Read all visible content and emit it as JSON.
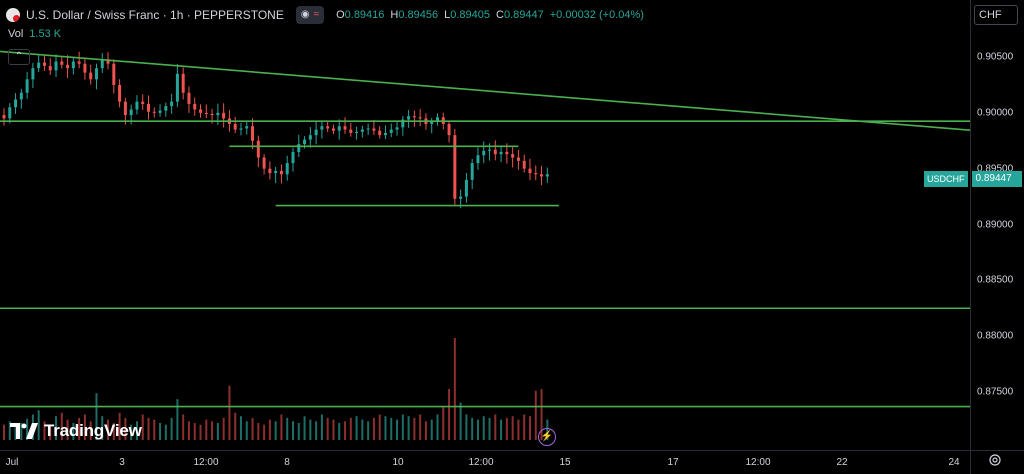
{
  "legend": {
    "symbol_title": "U.S. Dollar / Swiss Franc · 1h · PEPPERSTONE",
    "toggle_icon_left": "eye-icon",
    "toggle_icon_right": "wave-icon",
    "ohlc": {
      "o_key": "O",
      "o_val": "0.89416",
      "h_key": "H",
      "h_val": "0.89456",
      "l_key": "L",
      "l_val": "0.89405",
      "c_key": "C",
      "c_val": "0.89447",
      "change": "+0.00032 (+0.04%)"
    },
    "vol_label": "Vol",
    "vol_value": "1.53 K",
    "collapse_glyph": "⌃"
  },
  "currency": "CHF",
  "price_tag": {
    "symbol": "USDCHF",
    "price": "0.89447"
  },
  "logo_text": "TradingView",
  "colors": {
    "up": "#26a69a",
    "down": "#ef5350",
    "line": "#4caf50",
    "bg": "#000000"
  },
  "price_axis_labels": [
    "0.90500",
    "0.90000",
    "0.89500",
    "0.89000",
    "0.88500",
    "0.88000",
    "0.87500"
  ],
  "time_axis_labels": [
    "Jul",
    "3",
    "12:00",
    "8",
    "10",
    "12:00",
    "15",
    "17",
    "12:00",
    "22",
    "24"
  ],
  "chart_data": {
    "type": "candlestick",
    "symbol": "USDCHF",
    "interval": "1h",
    "ylim": [
      0.8735,
      0.9085
    ],
    "y_ticks": [
      0.905,
      0.9,
      0.895,
      0.89,
      0.885,
      0.88,
      0.875
    ],
    "last_price": 0.89447,
    "close_path": [
      0.8995,
      0.9005,
      0.9012,
      0.9018,
      0.903,
      0.904,
      0.9045,
      0.9042,
      0.9038,
      0.9046,
      0.9043,
      0.904,
      0.9046,
      0.9044,
      0.9036,
      0.903,
      0.904,
      0.9048,
      0.9044,
      0.9025,
      0.901,
      0.8998,
      0.9003,
      0.901,
      0.9008,
      0.9001,
      0.9,
      0.9002,
      0.9006,
      0.901,
      0.9035,
      0.9018,
      0.9008,
      0.9003,
      0.9,
      0.8999,
      0.8998,
      0.9,
      0.8995,
      0.899,
      0.8985,
      0.8986,
      0.8988,
      0.8975,
      0.896,
      0.895,
      0.8946,
      0.8948,
      0.8945,
      0.8955,
      0.8965,
      0.8972,
      0.8976,
      0.898,
      0.8985,
      0.8988,
      0.8986,
      0.8984,
      0.8988,
      0.8985,
      0.8982,
      0.8983,
      0.8985,
      0.8986,
      0.8984,
      0.898,
      0.8982,
      0.8985,
      0.8987,
      0.8994,
      0.8997,
      0.8996,
      0.8995,
      0.899,
      0.8992,
      0.8996,
      0.899,
      0.898,
      0.8923,
      0.8925,
      0.894,
      0.8955,
      0.8962,
      0.8966,
      0.8967,
      0.8963,
      0.8965,
      0.8963,
      0.896,
      0.8957,
      0.895,
      0.8946,
      0.8945,
      0.8943,
      0.8945
    ],
    "volume": [
      18,
      22,
      15,
      20,
      25,
      30,
      35,
      22,
      18,
      28,
      32,
      24,
      20,
      26,
      30,
      22,
      55,
      28,
      24,
      20,
      32,
      26,
      18,
      22,
      30,
      26,
      24,
      20,
      18,
      26,
      48,
      30,
      22,
      20,
      18,
      24,
      22,
      20,
      26,
      64,
      32,
      28,
      22,
      26,
      20,
      18,
      24,
      22,
      30,
      26,
      22,
      20,
      28,
      24,
      22,
      30,
      26,
      24,
      20,
      22,
      26,
      28,
      24,
      22,
      26,
      30,
      28,
      26,
      24,
      30,
      28,
      26,
      30,
      22,
      24,
      30,
      40,
      60,
      120,
      44,
      30,
      26,
      24,
      28,
      26,
      30,
      24,
      26,
      28,
      24,
      30,
      28,
      58,
      60,
      24
    ],
    "horizontal_lines": [
      {
        "price": 0.89925,
        "from": "start",
        "to": "end"
      },
      {
        "price": 0.897,
        "from_index": 39,
        "to_index": 89
      },
      {
        "price": 0.8917,
        "from_index": 47,
        "to_index": 96
      },
      {
        "price": 0.8825,
        "from": "start",
        "to": "end"
      },
      {
        "price": 0.8737,
        "from": "start",
        "to": "end"
      }
    ],
    "trend_line": {
      "start_price": 0.9055,
      "end_price": 0.89845
    }
  }
}
